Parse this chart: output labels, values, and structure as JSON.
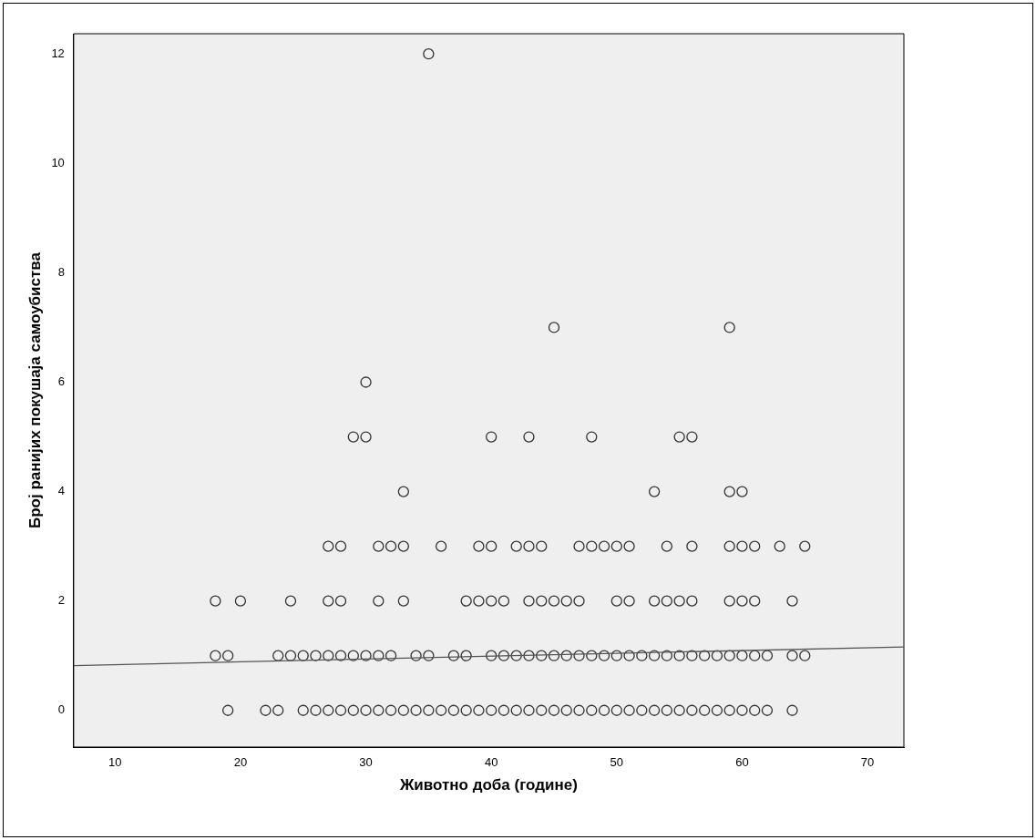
{
  "chart_data": {
    "type": "scatter",
    "xlabel": "Животно доба (године)",
    "ylabel": "Број ранијих покушаја самоубиства",
    "xlim": [
      6.7,
      72.9
    ],
    "xticks": [
      10,
      20,
      30,
      40,
      50,
      60,
      70
    ],
    "ylim": [
      -0.67,
      12.37
    ],
    "yticks": [
      0,
      2,
      4,
      6,
      8,
      10,
      12
    ],
    "grid": false,
    "legend": false,
    "marker": "circle",
    "series": [
      {
        "type": "scatter",
        "color": "#333333",
        "x": [
          19,
          22,
          23,
          25,
          26,
          27,
          28,
          29,
          30,
          31,
          32,
          33,
          34,
          35,
          36,
          37,
          38,
          39,
          40,
          41,
          42,
          43,
          44,
          45,
          46,
          47,
          48,
          49,
          50,
          51,
          52,
          53,
          54,
          55,
          56,
          57,
          58,
          59,
          60,
          61,
          62,
          64,
          18,
          19,
          23,
          24,
          25,
          26,
          27,
          28,
          29,
          30,
          31,
          32,
          34,
          35,
          37,
          38,
          40,
          41,
          42,
          43,
          44,
          45,
          46,
          47,
          48,
          49,
          50,
          51,
          52,
          53,
          54,
          55,
          56,
          57,
          58,
          59,
          60,
          61,
          62,
          64,
          65,
          18,
          20,
          24,
          27,
          28,
          31,
          33,
          38,
          39,
          40,
          41,
          43,
          44,
          45,
          46,
          47,
          50,
          51,
          53,
          54,
          55,
          56,
          59,
          60,
          61,
          64,
          27,
          28,
          31,
          32,
          33,
          36,
          39,
          40,
          42,
          43,
          44,
          47,
          48,
          49,
          50,
          51,
          54,
          56,
          59,
          60,
          61,
          63,
          65,
          33,
          53,
          59,
          60,
          29,
          30,
          40,
          43,
          48,
          55,
          56,
          30,
          45,
          59,
          35
        ],
        "values": [
          0,
          0,
          0,
          0,
          0,
          0,
          0,
          0,
          0,
          0,
          0,
          0,
          0,
          0,
          0,
          0,
          0,
          0,
          0,
          0,
          0,
          0,
          0,
          0,
          0,
          0,
          0,
          0,
          0,
          0,
          0,
          0,
          0,
          0,
          0,
          0,
          0,
          0,
          0,
          0,
          0,
          0,
          1,
          1,
          1,
          1,
          1,
          1,
          1,
          1,
          1,
          1,
          1,
          1,
          1,
          1,
          1,
          1,
          1,
          1,
          1,
          1,
          1,
          1,
          1,
          1,
          1,
          1,
          1,
          1,
          1,
          1,
          1,
          1,
          1,
          1,
          1,
          1,
          1,
          1,
          1,
          1,
          1,
          2,
          2,
          2,
          2,
          2,
          2,
          2,
          2,
          2,
          2,
          2,
          2,
          2,
          2,
          2,
          2,
          2,
          2,
          2,
          2,
          2,
          2,
          2,
          2,
          2,
          2,
          3,
          3,
          3,
          3,
          3,
          3,
          3,
          3,
          3,
          3,
          3,
          3,
          3,
          3,
          3,
          3,
          3,
          3,
          3,
          3,
          3,
          3,
          3,
          4,
          4,
          4,
          4,
          5,
          5,
          5,
          5,
          5,
          5,
          5,
          6,
          7,
          7,
          12
        ]
      },
      {
        "type": "line",
        "color": "#555555",
        "x": [
          6.7,
          72.9
        ],
        "values": [
          0.82,
          1.16
        ],
        "marker": "none",
        "line_style": "solid"
      }
    ]
  }
}
